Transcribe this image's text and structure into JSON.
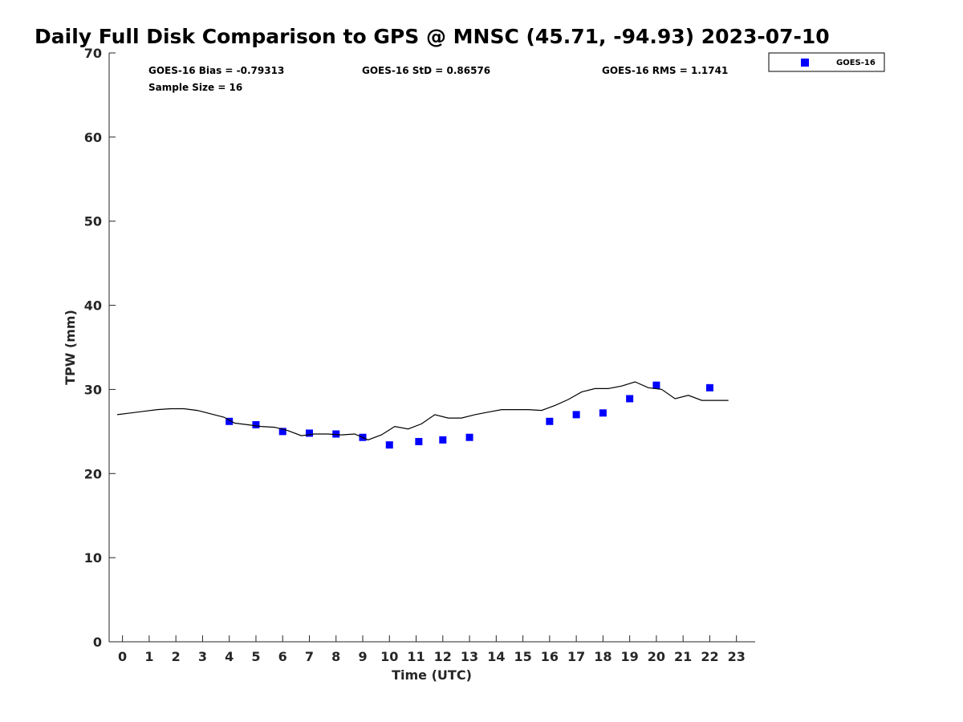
{
  "chart_data": {
    "type": "scatter",
    "title": "Daily Full Disk Comparison to GPS @ MNSC (45.71, -94.93) 2023-07-10",
    "xlabel": "Time (UTC)",
    "ylabel": "TPW (mm)",
    "xlim": [
      -0.5,
      23.7
    ],
    "ylim": [
      0,
      70
    ],
    "x_ticks": [
      "0",
      "1",
      "2",
      "3",
      "4",
      "5",
      "6",
      "7",
      "8",
      "9",
      "10",
      "11",
      "12",
      "13",
      "14",
      "15",
      "16",
      "17",
      "18",
      "19",
      "20",
      "21",
      "22",
      "23"
    ],
    "y_ticks": [
      "0",
      "10",
      "20",
      "30",
      "40",
      "50",
      "60",
      "70"
    ],
    "grid": false,
    "legend_position": "top-right (outside plot)",
    "stats": {
      "bias": "GOES-16 Bias = -0.79313",
      "std": "GOES-16 StD = 0.86576",
      "rms": "GOES-16 RMS = 1.1741",
      "n": "Sample Size = 16"
    },
    "series": [
      {
        "name": "GOES-16",
        "kind": "scatter",
        "marker": "square",
        "color": "#0000ff",
        "x": [
          4.0,
          5.0,
          6.0,
          7.0,
          8.0,
          9.0,
          10.0,
          11.1,
          12.0,
          13.0,
          16.0,
          17.0,
          18.0,
          19.0,
          20.0,
          22.0
        ],
        "y": [
          26.2,
          25.8,
          25.0,
          24.8,
          24.7,
          24.3,
          23.4,
          23.8,
          24.0,
          24.3,
          26.2,
          27.0,
          27.2,
          28.9,
          30.5,
          30.2
        ]
      },
      {
        "kind": "line",
        "color": "#000000",
        "x": [
          -0.2,
          0.3,
          0.8,
          1.3,
          1.8,
          2.3,
          2.8,
          3.3,
          3.8,
          4.2,
          4.7,
          5.2,
          5.7,
          6.2,
          6.7,
          7.2,
          7.7,
          8.2,
          8.7,
          9.2,
          9.7,
          10.2,
          10.7,
          11.2,
          11.7,
          12.2,
          12.7,
          13.2,
          13.7,
          14.2,
          14.7,
          15.2,
          15.7,
          16.2,
          16.7,
          17.2,
          17.7,
          18.2,
          18.7,
          19.2,
          19.7,
          20.2,
          20.7,
          21.2,
          21.7,
          22.2,
          22.7
        ],
        "y": [
          27.0,
          27.2,
          27.4,
          27.6,
          27.7,
          27.7,
          27.5,
          27.1,
          26.7,
          26.0,
          25.8,
          25.6,
          25.5,
          25.1,
          24.5,
          24.7,
          24.7,
          24.6,
          24.7,
          24.0,
          24.6,
          25.6,
          25.3,
          25.9,
          27.0,
          26.6,
          26.6,
          27.0,
          27.3,
          27.6,
          27.6,
          27.6,
          27.5,
          28.1,
          28.8,
          29.7,
          30.1,
          30.1,
          30.4,
          30.9,
          30.2,
          30.0,
          28.9,
          29.3,
          28.7,
          28.7,
          28.7
        ]
      }
    ]
  }
}
